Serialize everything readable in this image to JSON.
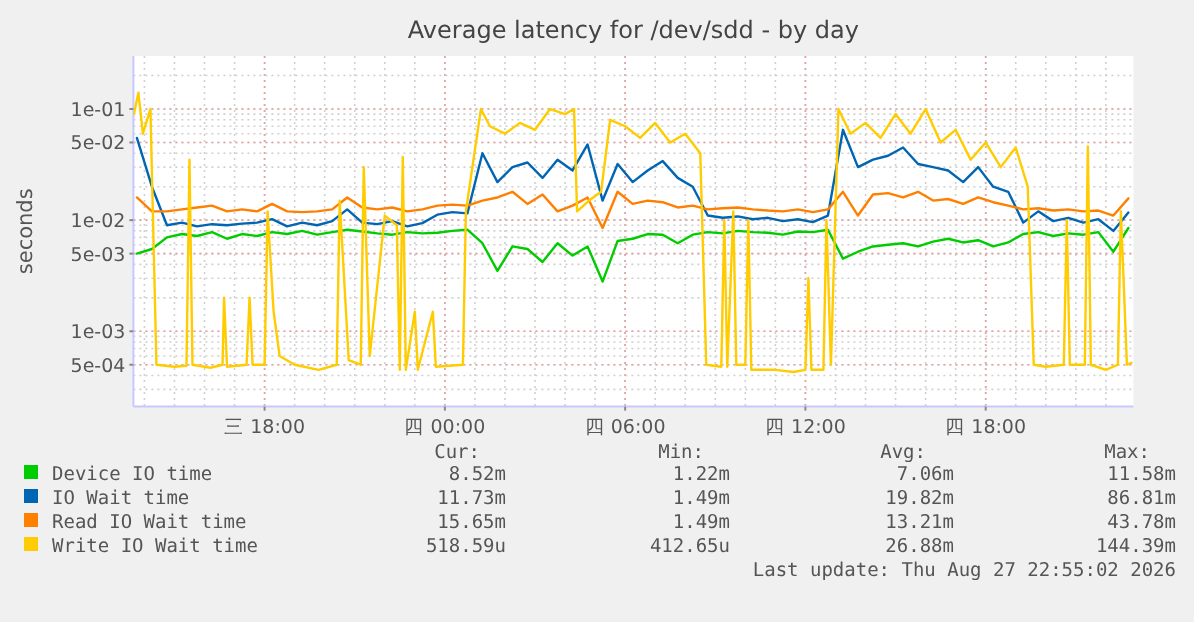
{
  "chart_data": {
    "type": "line",
    "title": "Average latency for /dev/sdd - by day",
    "ylabel": "seconds",
    "log": "y",
    "grid": true,
    "legend": "bottom",
    "xlim": [
      "2026-08-26T13:38",
      "2026-08-27T22:55"
    ],
    "xticks": [
      {
        "value": "2026-08-26T18:00",
        "label": "三 18:00"
      },
      {
        "value": "2026-08-27T00:00",
        "label": "四 00:00"
      },
      {
        "value": "2026-08-27T06:00",
        "label": "四 06:00"
      },
      {
        "value": "2026-08-27T12:00",
        "label": "四 12:00"
      },
      {
        "value": "2026-08-27T18:00",
        "label": "四 18:00"
      }
    ],
    "ylim": [
      0.00021,
      0.3
    ],
    "yticks": [
      {
        "value": 0.1,
        "label": "1e-01"
      },
      {
        "value": 0.05,
        "label": "5e-02"
      },
      {
        "value": 0.01,
        "label": "1e-02"
      },
      {
        "value": 0.005,
        "label": "5e-03"
      },
      {
        "value": 0.001,
        "label": "1e-03"
      },
      {
        "value": 0.0005,
        "label": "5e-04"
      }
    ],
    "x": [
      "2026-08-26T13:45",
      "2026-08-26T14:15",
      "2026-08-26T14:45",
      "2026-08-26T15:15",
      "2026-08-26T15:45",
      "2026-08-26T16:15",
      "2026-08-26T16:45",
      "2026-08-26T17:15",
      "2026-08-26T17:45",
      "2026-08-26T18:15",
      "2026-08-26T18:45",
      "2026-08-26T19:15",
      "2026-08-26T19:45",
      "2026-08-26T20:15",
      "2026-08-26T20:45",
      "2026-08-26T21:15",
      "2026-08-26T21:45",
      "2026-08-26T22:15",
      "2026-08-26T22:45",
      "2026-08-26T23:15",
      "2026-08-26T23:45",
      "2026-08-27T00:15",
      "2026-08-27T00:45",
      "2026-08-27T01:15",
      "2026-08-27T01:45",
      "2026-08-27T02:15",
      "2026-08-27T02:45",
      "2026-08-27T03:15",
      "2026-08-27T03:45",
      "2026-08-27T04:15",
      "2026-08-27T04:45",
      "2026-08-27T05:15",
      "2026-08-27T05:45",
      "2026-08-27T06:15",
      "2026-08-27T06:45",
      "2026-08-27T07:15",
      "2026-08-27T07:45",
      "2026-08-27T08:15",
      "2026-08-27T08:45",
      "2026-08-27T09:15",
      "2026-08-27T09:45",
      "2026-08-27T10:15",
      "2026-08-27T10:45",
      "2026-08-27T11:15",
      "2026-08-27T11:45",
      "2026-08-27T12:15",
      "2026-08-27T12:45",
      "2026-08-27T13:15",
      "2026-08-27T13:45",
      "2026-08-27T14:15",
      "2026-08-27T14:45",
      "2026-08-27T15:15",
      "2026-08-27T15:45",
      "2026-08-27T16:15",
      "2026-08-27T16:45",
      "2026-08-27T17:15",
      "2026-08-27T17:45",
      "2026-08-27T18:15",
      "2026-08-27T18:45",
      "2026-08-27T19:15",
      "2026-08-27T19:45",
      "2026-08-27T20:15",
      "2026-08-27T20:45",
      "2026-08-27T21:15",
      "2026-08-27T21:45",
      "2026-08-27T22:15",
      "2026-08-27T22:45"
    ],
    "series": [
      {
        "name": "Device IO time",
        "color": "#00cc00",
        "values": [
          0.005,
          0.0055,
          0.007,
          0.0075,
          0.0072,
          0.0078,
          0.0068,
          0.0075,
          0.0072,
          0.0078,
          0.0075,
          0.008,
          0.0074,
          0.0078,
          0.0082,
          0.0079,
          0.0076,
          0.0074,
          0.0078,
          0.0076,
          0.0077,
          0.008,
          0.0082,
          0.0062,
          0.0035,
          0.0058,
          0.0055,
          0.0042,
          0.0062,
          0.0048,
          0.0058,
          0.0028,
          0.0065,
          0.0068,
          0.0075,
          0.0074,
          0.0062,
          0.0074,
          0.0078,
          0.0076,
          0.008,
          0.0078,
          0.0077,
          0.0074,
          0.0079,
          0.0078,
          0.0082,
          0.0045,
          0.0052,
          0.0058,
          0.006,
          0.0062,
          0.0058,
          0.0064,
          0.0068,
          0.0063,
          0.0066,
          0.0058,
          0.0063,
          0.0075,
          0.0078,
          0.0072,
          0.0076,
          0.0074,
          0.0078,
          0.0052,
          0.0085
        ]
      },
      {
        "name": "IO Wait time",
        "color": "#0066b3",
        "values": [
          0.055,
          0.02,
          0.009,
          0.0095,
          0.0088,
          0.0092,
          0.009,
          0.0093,
          0.0095,
          0.0102,
          0.0088,
          0.0095,
          0.009,
          0.0098,
          0.0125,
          0.0095,
          0.0092,
          0.0098,
          0.0088,
          0.0094,
          0.0112,
          0.0118,
          0.0115,
          0.04,
          0.022,
          0.03,
          0.033,
          0.024,
          0.035,
          0.028,
          0.048,
          0.015,
          0.032,
          0.022,
          0.028,
          0.034,
          0.024,
          0.02,
          0.011,
          0.0105,
          0.0108,
          0.0102,
          0.0105,
          0.0098,
          0.0102,
          0.0096,
          0.011,
          0.065,
          0.03,
          0.035,
          0.038,
          0.045,
          0.032,
          0.03,
          0.028,
          0.022,
          0.03,
          0.02,
          0.018,
          0.0095,
          0.012,
          0.0098,
          0.0105,
          0.0095,
          0.0102,
          0.008,
          0.0117
        ]
      },
      {
        "name": "Read IO Wait time",
        "color": "#ff8000",
        "values": [
          0.016,
          0.012,
          0.012,
          0.0125,
          0.013,
          0.0135,
          0.012,
          0.0125,
          0.012,
          0.014,
          0.012,
          0.0118,
          0.012,
          0.0125,
          0.016,
          0.013,
          0.0125,
          0.013,
          0.012,
          0.0125,
          0.0135,
          0.0138,
          0.0135,
          0.015,
          0.016,
          0.018,
          0.014,
          0.017,
          0.012,
          0.0135,
          0.016,
          0.0085,
          0.018,
          0.014,
          0.015,
          0.0145,
          0.013,
          0.0135,
          0.0125,
          0.0128,
          0.013,
          0.0125,
          0.0122,
          0.012,
          0.0125,
          0.0118,
          0.0125,
          0.018,
          0.011,
          0.017,
          0.0175,
          0.016,
          0.018,
          0.015,
          0.0155,
          0.014,
          0.016,
          0.0145,
          0.0135,
          0.0125,
          0.0128,
          0.0122,
          0.0125,
          0.012,
          0.0122,
          0.011,
          0.0157
        ]
      },
      {
        "name": "Write IO Wait time",
        "color": "#ffcc00",
        "x": [
          "2026-08-26T13:39",
          "2026-08-26T13:48",
          "2026-08-26T13:57",
          "2026-08-26T14:12",
          "2026-08-26T14:24",
          "2026-08-26T15:00",
          "2026-08-26T15:24",
          "2026-08-26T15:30",
          "2026-08-26T15:36",
          "2026-08-26T16:12",
          "2026-08-26T16:36",
          "2026-08-26T16:39",
          "2026-08-26T16:45",
          "2026-08-26T17:24",
          "2026-08-26T17:30",
          "2026-08-26T17:36",
          "2026-08-26T18:00",
          "2026-08-26T18:06",
          "2026-08-26T18:18",
          "2026-08-26T18:30",
          "2026-08-26T19:00",
          "2026-08-26T19:48",
          "2026-08-26T20:24",
          "2026-08-26T20:30",
          "2026-08-26T20:48",
          "2026-08-26T21:12",
          "2026-08-26T21:18",
          "2026-08-26T21:30",
          "2026-08-26T22:00",
          "2026-08-26T22:24",
          "2026-08-26T22:30",
          "2026-08-26T22:36",
          "2026-08-26T22:42",
          "2026-08-26T23:00",
          "2026-08-26T23:06",
          "2026-08-26T23:36",
          "2026-08-26T23:42",
          "2026-08-27T00:36",
          "2026-08-27T00:42",
          "2026-08-27T01:12",
          "2026-08-27T01:30",
          "2026-08-27T02:00",
          "2026-08-27T02:30",
          "2026-08-27T03:00",
          "2026-08-27T03:30",
          "2026-08-27T04:00",
          "2026-08-27T04:18",
          "2026-08-27T04:24",
          "2026-08-27T04:48",
          "2026-08-27T05:12",
          "2026-08-27T05:30",
          "2026-08-27T06:00",
          "2026-08-27T06:30",
          "2026-08-27T07:00",
          "2026-08-27T07:30",
          "2026-08-27T08:00",
          "2026-08-27T08:30",
          "2026-08-27T08:42",
          "2026-08-27T09:12",
          "2026-08-27T09:18",
          "2026-08-27T09:24",
          "2026-08-27T09:36",
          "2026-08-27T09:42",
          "2026-08-27T10:00",
          "2026-08-27T10:06",
          "2026-08-27T10:12",
          "2026-08-27T11:00",
          "2026-08-27T11:36",
          "2026-08-27T12:00",
          "2026-08-27T12:06",
          "2026-08-27T12:12",
          "2026-08-27T12:36",
          "2026-08-27T12:42",
          "2026-08-27T12:51",
          "2026-08-27T13:06",
          "2026-08-27T13:30",
          "2026-08-27T14:00",
          "2026-08-27T14:30",
          "2026-08-27T15:00",
          "2026-08-27T15:30",
          "2026-08-27T16:00",
          "2026-08-27T16:30",
          "2026-08-27T17:00",
          "2026-08-27T17:30",
          "2026-08-27T18:00",
          "2026-08-27T18:30",
          "2026-08-27T19:00",
          "2026-08-27T19:24",
          "2026-08-27T19:36",
          "2026-08-27T20:00",
          "2026-08-27T20:36",
          "2026-08-27T20:42",
          "2026-08-27T20:48",
          "2026-08-27T21:18",
          "2026-08-27T21:24",
          "2026-08-27T21:30",
          "2026-08-27T22:00",
          "2026-08-27T22:24",
          "2026-08-27T22:30",
          "2026-08-27T22:42",
          "2026-08-27T22:51"
        ],
        "values": [
          0.09,
          0.14,
          0.06,
          0.1,
          0.0005,
          0.00048,
          0.00049,
          0.035,
          0.0005,
          0.00047,
          0.0005,
          0.002,
          0.00048,
          0.0005,
          0.002,
          0.0005,
          0.0005,
          0.012,
          0.0015,
          0.0006,
          0.0005,
          0.00045,
          0.0005,
          0.015,
          0.00055,
          0.0005,
          0.03,
          0.0006,
          0.011,
          0.009,
          0.00045,
          0.037,
          0.00045,
          0.0015,
          0.00045,
          0.0015,
          0.00048,
          0.0005,
          0.012,
          0.1,
          0.07,
          0.06,
          0.075,
          0.065,
          0.1,
          0.09,
          0.1,
          0.012,
          0.015,
          0.018,
          0.08,
          0.07,
          0.055,
          0.075,
          0.05,
          0.06,
          0.04,
          0.0005,
          0.00048,
          0.01,
          0.00048,
          0.012,
          0.0005,
          0.0005,
          0.01,
          0.00045,
          0.00045,
          0.00043,
          0.00045,
          0.003,
          0.00045,
          0.00045,
          0.01,
          0.0005,
          0.1,
          0.06,
          0.075,
          0.055,
          0.09,
          0.06,
          0.1,
          0.05,
          0.065,
          0.035,
          0.05,
          0.03,
          0.045,
          0.02,
          0.0005,
          0.00048,
          0.0005,
          0.01,
          0.0005,
          0.0005,
          0.046,
          0.0005,
          0.00045,
          0.0005,
          0.012,
          0.0005,
          0.00052
        ]
      }
    ],
    "annotations": [
      "Cur:",
      "Min:",
      "Avg:",
      "Max:",
      "8.52m",
      "1.22m",
      "7.06m",
      "11.58m",
      "11.73m",
      "1.49m",
      "19.82m",
      "86.81m",
      "15.65m",
      "1.49m",
      "13.21m",
      "43.78m",
      "518.59u",
      "412.65u",
      "26.88m",
      "144.39m",
      "Last update: Thu Aug 27 22:55:02 2026"
    ]
  }
}
